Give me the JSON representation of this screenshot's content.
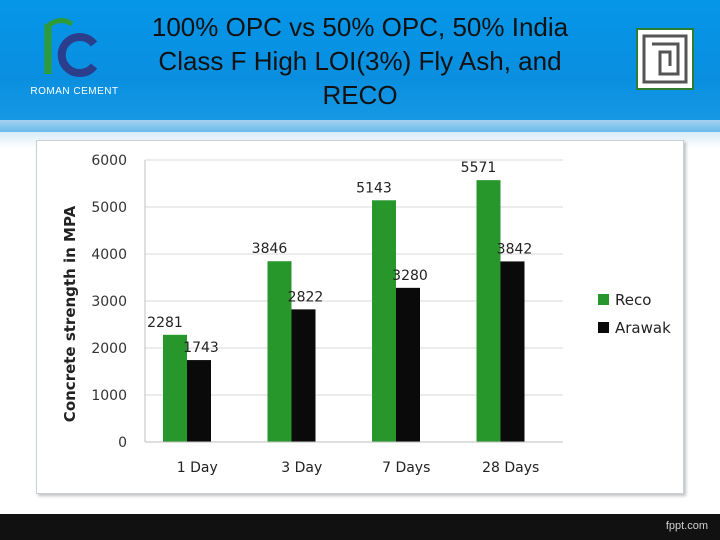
{
  "slide": {
    "title": "100% OPC vs 50% OPC, 50% India Class F High LOI(3%) Fly Ash, and RECO",
    "left_logo_text": "ROMAN CEMENT",
    "footer_text": "fppt.com",
    "colors": {
      "header": "#0a8fe0",
      "footer": "#111111"
    }
  },
  "chart_data": {
    "type": "bar",
    "categories": [
      "1 Day",
      "3 Day",
      "7 Days",
      "28 Days"
    ],
    "series": [
      {
        "name": "Reco",
        "values": [
          2281,
          3846,
          5143,
          5571
        ],
        "color": "#27962b"
      },
      {
        "name": "Arawak",
        "values": [
          1743,
          2822,
          3280,
          3842
        ],
        "color": "#0a0a0a"
      }
    ],
    "data_labels": [
      [
        "2281",
        "3846",
        "5143",
        "5571"
      ],
      [
        "1743",
        "2822",
        "3280",
        "3842"
      ]
    ],
    "ylabel": "Concrete strength in MPA",
    "xlabel": "",
    "ylim": [
      0,
      6000
    ],
    "yticks": [
      "0",
      "1000",
      "2000",
      "3000",
      "4000",
      "5000",
      "6000"
    ],
    "grid": true,
    "legend_position": "right"
  }
}
